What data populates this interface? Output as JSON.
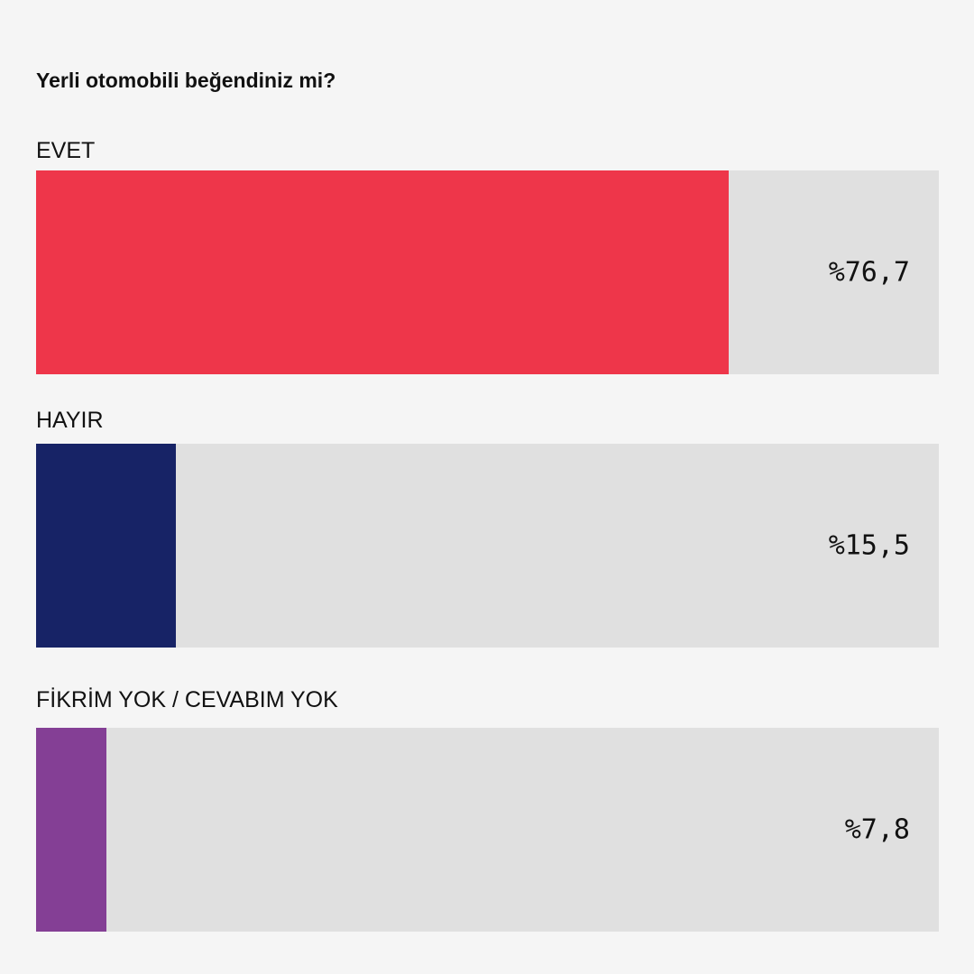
{
  "chart_data": {
    "type": "bar",
    "title": "Yerli otomobili beğendiniz mi?",
    "unit": "%",
    "xlim": [
      0,
      100
    ],
    "categories": [
      "EVET",
      "HAYIR",
      "FİKRİM YOK / CEVABIM YOK"
    ],
    "values": [
      76.7,
      15.5,
      7.8
    ],
    "value_labels": [
      "%76,7",
      "%15,5",
      "%7,8"
    ],
    "colors": [
      "#ee364a",
      "#172366",
      "#843f95"
    ],
    "track_color": "#e0e0e0",
    "background_color": "#f5f5f5",
    "orientation": "horizontal",
    "grid": false,
    "legend": "none"
  }
}
